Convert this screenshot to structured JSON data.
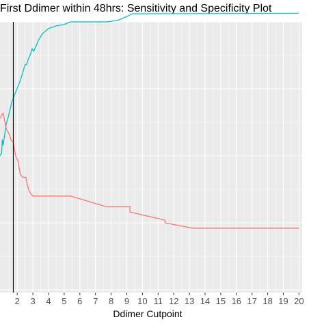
{
  "chart_data": {
    "type": "line",
    "title": "First Ddimer within 48hrs: Sensitivity and Specificity Plot",
    "xlabel": "Ddimer Cutpoint",
    "ylabel": "",
    "xlim": [
      0.9,
      20.2
    ],
    "ylim": [
      0,
      1
    ],
    "x_ticks": [
      "2",
      "3",
      "4",
      "5",
      "6",
      "7",
      "8",
      "9",
      "10",
      "11",
      "12",
      "13",
      "14",
      "15",
      "16",
      "17",
      "18",
      "19",
      "20"
    ],
    "x_tick_values": [
      2,
      3,
      4,
      5,
      6,
      7,
      8,
      9,
      10,
      11,
      12,
      13,
      14,
      15,
      16,
      17,
      18,
      19,
      20
    ],
    "grid": true,
    "vline_x": 1.75,
    "colors": {
      "teal": "#00bfc4",
      "salmon": "#f8766d",
      "panel": "#ebebeb",
      "grid": "#ffffff"
    },
    "series": [
      {
        "color": "#00bfc4",
        "points": [
          [
            0.9,
            0.5
          ],
          [
            1.0,
            0.51
          ],
          [
            1.05,
            0.56
          ],
          [
            1.1,
            0.54
          ],
          [
            1.2,
            0.58
          ],
          [
            1.3,
            0.62
          ],
          [
            1.45,
            0.65
          ],
          [
            1.65,
            0.7
          ],
          [
            1.85,
            0.73
          ],
          [
            2.05,
            0.76
          ],
          [
            2.25,
            0.79
          ],
          [
            2.4,
            0.82
          ],
          [
            2.5,
            0.84
          ],
          [
            2.6,
            0.84
          ],
          [
            2.7,
            0.86
          ],
          [
            2.85,
            0.88
          ],
          [
            2.95,
            0.9
          ],
          [
            3.05,
            0.89
          ],
          [
            3.2,
            0.91
          ],
          [
            3.35,
            0.93
          ],
          [
            3.6,
            0.955
          ],
          [
            4.0,
            0.975
          ],
          [
            4.5,
            0.985
          ],
          [
            5.0,
            0.99
          ],
          [
            5.4,
            1.0
          ],
          [
            7.7,
            1.0
          ],
          [
            8.4,
            1.005
          ],
          [
            9.0,
            1.02
          ],
          [
            9.35,
            1.03
          ],
          [
            20.0,
            1.032
          ]
        ]
      },
      {
        "color": "#f8766d",
        "points": [
          [
            0.9,
            0.64
          ],
          [
            1.1,
            0.66
          ],
          [
            1.3,
            0.6
          ],
          [
            1.5,
            0.58
          ],
          [
            1.6,
            0.56
          ],
          [
            1.75,
            0.55
          ],
          [
            1.9,
            0.5
          ],
          [
            2.05,
            0.48
          ],
          [
            2.2,
            0.43
          ],
          [
            2.35,
            0.42
          ],
          [
            2.55,
            0.42
          ],
          [
            2.65,
            0.39
          ],
          [
            2.75,
            0.37
          ],
          [
            2.85,
            0.36
          ],
          [
            3.0,
            0.35
          ],
          [
            5.4,
            0.35
          ],
          [
            7.7,
            0.31
          ],
          [
            9.2,
            0.31
          ],
          [
            9.2,
            0.29
          ],
          [
            11.45,
            0.26
          ],
          [
            11.45,
            0.25
          ],
          [
            13.2,
            0.23
          ],
          [
            20.0,
            0.23
          ]
        ]
      }
    ]
  }
}
